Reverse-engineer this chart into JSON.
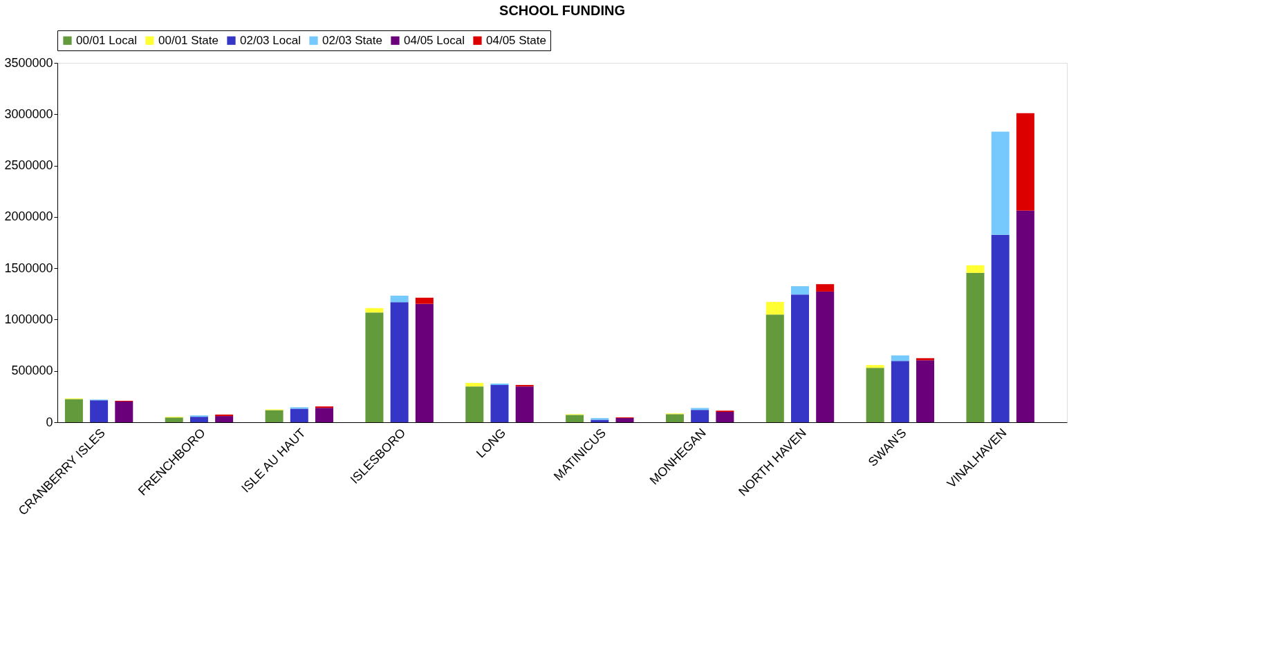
{
  "chart_data": {
    "type": "bar",
    "title": "SCHOOL FUNDING",
    "stacked": true,
    "legend": "top",
    "categories": [
      null,
      "CRANBERRY ISLES",
      null,
      null,
      null,
      "FRENCHBORO",
      null,
      null,
      null,
      "ISLE AU HAUT",
      null,
      null,
      null,
      "ISLESBORO",
      null,
      null,
      null,
      "LONG",
      null,
      null,
      null,
      "MATINICUS",
      null,
      null,
      null,
      "MONHEGAN",
      null,
      null,
      null,
      "NORTH HAVEN",
      null,
      null,
      null,
      "SWAN'S",
      null,
      null,
      null,
      "VINALHAVEN",
      null,
      null
    ],
    "series": [
      {
        "name": "00/01 Local",
        "color": "#629a3c",
        "values": [
          226000,
          null,
          null,
          null,
          46000,
          null,
          null,
          null,
          118000,
          null,
          null,
          null,
          1069000,
          null,
          null,
          null,
          349000,
          null,
          null,
          null,
          72000,
          null,
          null,
          null,
          79000,
          null,
          null,
          null,
          1049000,
          null,
          null,
          null,
          530000,
          null,
          null,
          null,
          1455000,
          null,
          null,
          null
        ]
      },
      {
        "name": "00/01 State",
        "color": "#ffff33",
        "values": [
          7000,
          null,
          null,
          null,
          7000,
          null,
          null,
          null,
          7000,
          null,
          null,
          null,
          43000,
          null,
          null,
          null,
          34000,
          null,
          null,
          null,
          7000,
          null,
          null,
          null,
          7000,
          null,
          null,
          null,
          123000,
          null,
          null,
          null,
          27000,
          null,
          null,
          null,
          74000,
          null,
          null,
          null
        ]
      },
      {
        "name": "02/03 Local",
        "color": "#3636c6",
        "values": [
          null,
          214000,
          null,
          null,
          null,
          53000,
          null,
          null,
          null,
          132000,
          null,
          null,
          null,
          1170000,
          null,
          null,
          null,
          363000,
          null,
          null,
          null,
          24000,
          null,
          null,
          null,
          120000,
          null,
          null,
          null,
          1244000,
          null,
          null,
          null,
          597000,
          null,
          null,
          null,
          1825000,
          null,
          null
        ]
      },
      {
        "name": "02/03 State",
        "color": "#75c9fd",
        "values": [
          null,
          7000,
          null,
          null,
          null,
          14000,
          null,
          null,
          null,
          14000,
          null,
          null,
          null,
          63000,
          null,
          null,
          null,
          14000,
          null,
          null,
          null,
          17000,
          null,
          null,
          null,
          19000,
          null,
          null,
          null,
          81000,
          null,
          null,
          null,
          54000,
          null,
          null,
          null,
          1005000,
          null,
          null
        ]
      },
      {
        "name": "04/05 Local",
        "color": "#6b007b",
        "values": [
          null,
          null,
          202000,
          null,
          null,
          null,
          60000,
          null,
          null,
          null,
          140000,
          null,
          null,
          null,
          1153000,
          null,
          null,
          null,
          349000,
          null,
          null,
          null,
          41000,
          null,
          null,
          null,
          101000,
          null,
          null,
          null,
          1273000,
          null,
          null,
          null,
          604000,
          null,
          null,
          null,
          2061000,
          null
        ]
      },
      {
        "name": "04/05 State",
        "color": "#dd0000",
        "values": [
          null,
          null,
          7000,
          null,
          null,
          null,
          15000,
          null,
          null,
          null,
          14000,
          null,
          null,
          null,
          60000,
          null,
          null,
          null,
          14000,
          null,
          null,
          null,
          7000,
          null,
          null,
          null,
          12000,
          null,
          null,
          null,
          72000,
          null,
          null,
          null,
          20000,
          null,
          null,
          null,
          950000,
          null
        ]
      }
    ],
    "ylim": [
      0,
      3500000
    ],
    "yticks": [
      0,
      500000,
      1000000,
      1500000,
      2000000,
      2500000,
      3000000,
      3500000
    ]
  }
}
